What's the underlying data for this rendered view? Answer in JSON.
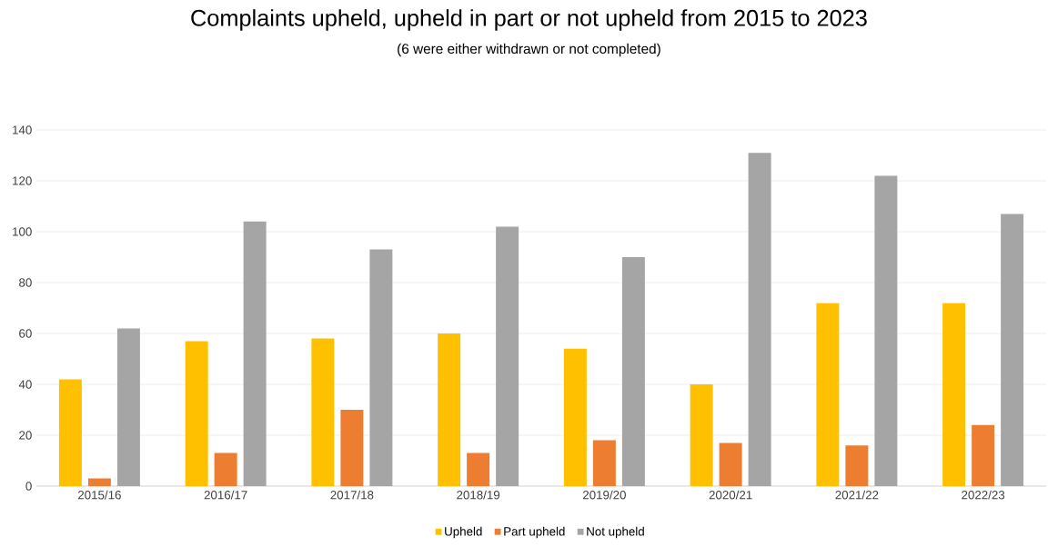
{
  "chart_data": {
    "type": "bar",
    "title": "Complaints upheld, upheld in part or not upheld from 2015 to 2023",
    "subtitle": "(6 were either withdrawn or not completed)",
    "categories": [
      "2015/16",
      "2016/17",
      "2017/18",
      "2018/19",
      "2019/20",
      "2020/21",
      "2021/22",
      "2022/23"
    ],
    "series": [
      {
        "name": "Upheld",
        "color": "#ffc000",
        "values": [
          42,
          57,
          58,
          60,
          54,
          40,
          72,
          72
        ]
      },
      {
        "name": "Part upheld",
        "color": "#ed7d31",
        "values": [
          3,
          13,
          30,
          13,
          18,
          17,
          16,
          24
        ]
      },
      {
        "name": "Not upheld",
        "color": "#a5a5a5",
        "values": [
          62,
          104,
          93,
          102,
          90,
          131,
          122,
          107
        ]
      }
    ],
    "ylim": [
      0,
      140
    ],
    "yticks": [
      0,
      20,
      40,
      60,
      80,
      100,
      120,
      140
    ],
    "grid": "y",
    "legend": "bottom"
  }
}
